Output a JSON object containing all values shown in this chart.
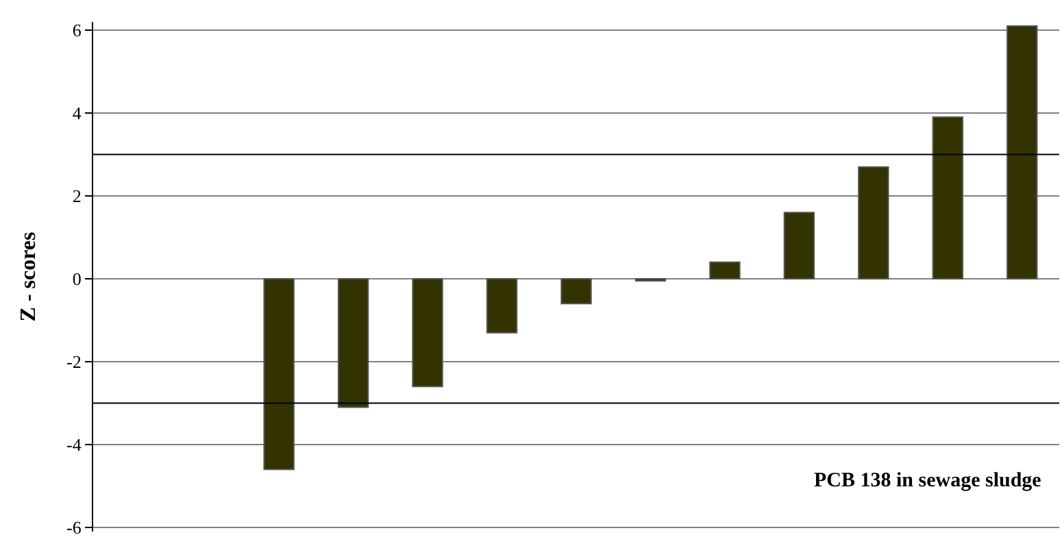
{
  "chart_data": {
    "type": "bar",
    "ylabel": "Z - scores",
    "categories": [
      null,
      null,
      null,
      null,
      null,
      null,
      null,
      null,
      null,
      null,
      null,
      null,
      null
    ],
    "values": [
      null,
      null,
      -4.6,
      -3.1,
      -2.6,
      -1.3,
      -0.6,
      -0.05,
      0.4,
      1.6,
      2.7,
      3.9,
      6.1
    ],
    "color": "#333300",
    "ylim": [
      -6.1,
      6.2
    ],
    "yticks": [
      -6,
      -4,
      -2,
      0,
      2,
      4,
      6
    ],
    "grid": "y",
    "ref_lines": [
      {
        "axis": "y",
        "value": 3,
        "color": "#000000"
      },
      {
        "axis": "y",
        "value": -3,
        "color": "#000000"
      }
    ],
    "annotations": [
      "PCB 138 in sewage sludge"
    ]
  }
}
